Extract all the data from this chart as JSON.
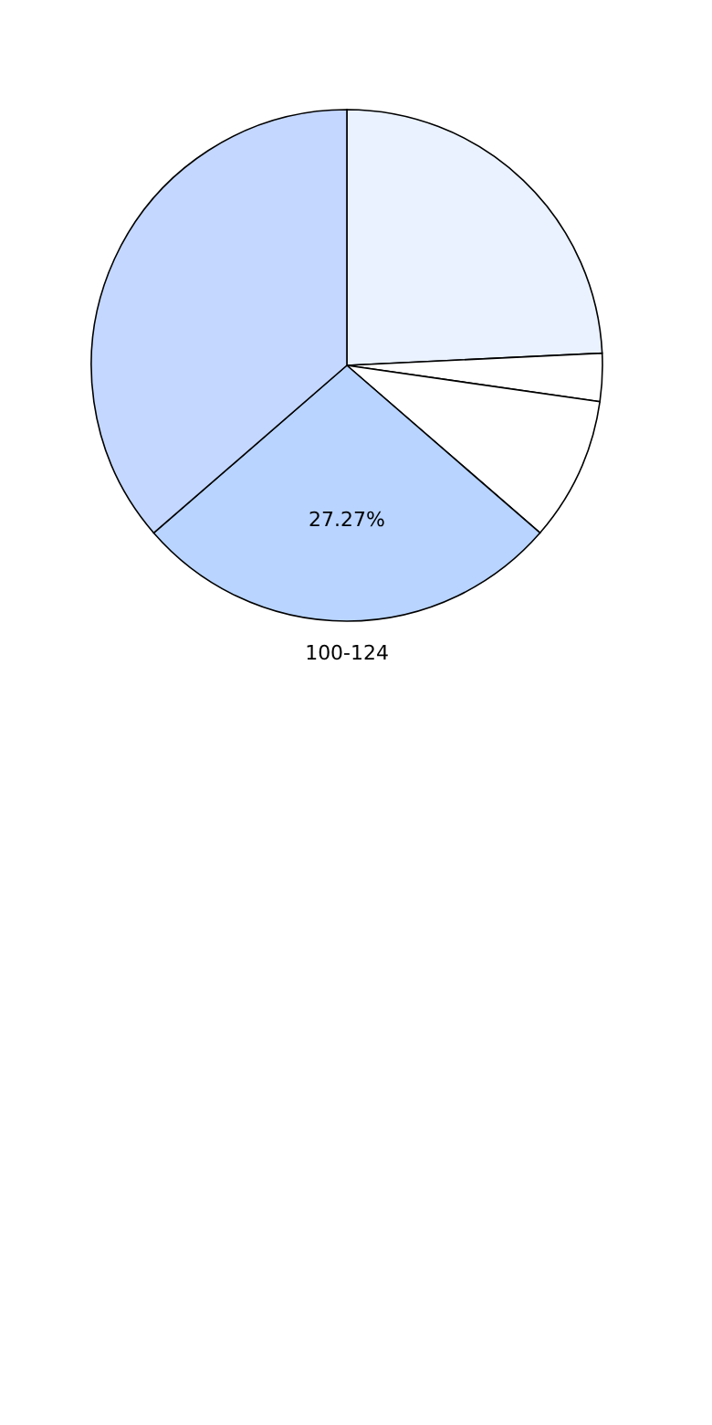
{
  "chart_data": {
    "type": "pie",
    "categories": [
      null,
      null,
      null,
      "100-124",
      null
    ],
    "values": [
      24.24,
      3.03,
      9.09,
      27.27,
      36.37
    ],
    "colors": [
      "#eaf2ff",
      "#ffffff",
      "#ffffff",
      "#b8d4ff",
      "#c4d7ff"
    ],
    "value_labels": [
      null,
      null,
      null,
      "27.27%",
      null
    ]
  }
}
